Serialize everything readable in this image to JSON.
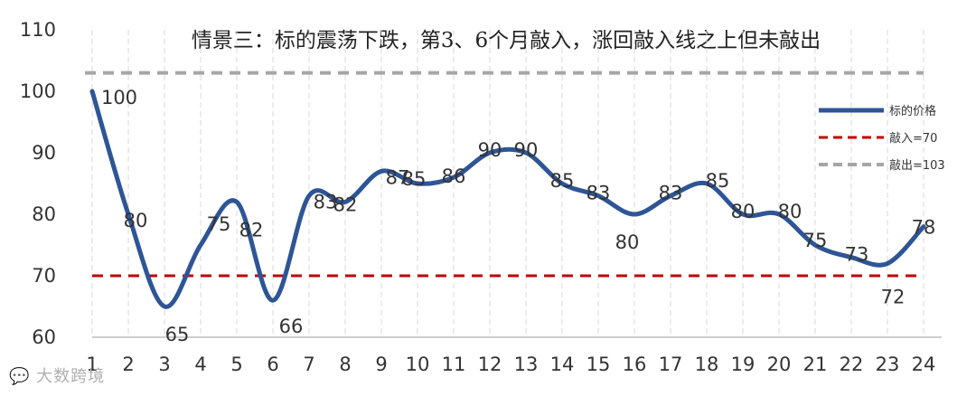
{
  "chart_data": {
    "type": "line",
    "title": "情景三：标的震荡下跌，第3、6个月敲入，涨回敲入线之上但未敲出",
    "x": [
      1,
      2,
      3,
      4,
      5,
      6,
      7,
      8,
      9,
      10,
      11,
      12,
      13,
      14,
      15,
      16,
      17,
      18,
      19,
      20,
      21,
      22,
      23,
      24
    ],
    "ylim": [
      60,
      110
    ],
    "yticks": [
      60,
      70,
      80,
      90,
      100,
      110
    ],
    "grid": "vertical-dashed",
    "legend_position": "right",
    "series": [
      {
        "name": "标的价格",
        "color": "#2E5595",
        "values": [
          100,
          80,
          65,
          75,
          82,
          66,
          83,
          82,
          87,
          85,
          86,
          90,
          90,
          85,
          83,
          80,
          83,
          85,
          80,
          80,
          75,
          73,
          72,
          78
        ]
      },
      {
        "name": "敲入=70",
        "color": "#C00000",
        "style": "dashed",
        "value": 70
      },
      {
        "name": "敲出=103",
        "color": "#A6A6A6",
        "style": "dashed",
        "value": 103
      }
    ]
  },
  "watermark": "大数跨境",
  "watermark_icon": "chat-bubble-icon"
}
